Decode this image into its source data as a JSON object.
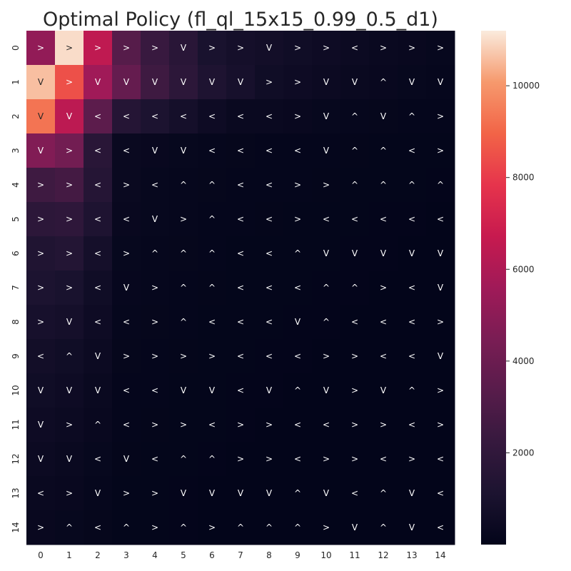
{
  "chart_data": {
    "type": "heatmap",
    "title": "Optimal Policy (fl_ql_15x15_0.99_0.5_d1)",
    "xlabel": "",
    "ylabel": "",
    "x_categories": [
      "0",
      "1",
      "2",
      "3",
      "4",
      "5",
      "6",
      "7",
      "8",
      "9",
      "10",
      "11",
      "12",
      "13",
      "14"
    ],
    "y_categories": [
      "0",
      "1",
      "2",
      "3",
      "4",
      "5",
      "6",
      "7",
      "8",
      "9",
      "10",
      "11",
      "12",
      "13",
      "14"
    ],
    "colorbar": {
      "vmin": 0,
      "vmax": 11200,
      "ticks": [
        2000,
        4000,
        6000,
        8000,
        10000
      ],
      "tick_labels": [
        "2000",
        "4000",
        "6000",
        "8000",
        "10000"
      ],
      "colormap": "rocket"
    },
    "annotations": [
      [
        ">",
        ">",
        ">",
        ">",
        ">",
        "V",
        ">",
        ">",
        "V",
        ">",
        ">",
        "<",
        ">",
        ">",
        ">"
      ],
      [
        "V",
        ">",
        "V",
        "V",
        "V",
        "V",
        "V",
        "V",
        ">",
        ">",
        "V",
        "V",
        "^",
        "V",
        "V"
      ],
      [
        "V",
        "V",
        "<",
        "<",
        "<",
        "<",
        "<",
        "<",
        "<",
        ">",
        "V",
        "^",
        "V",
        "^",
        ">"
      ],
      [
        "V",
        ">",
        "<",
        "<",
        "V",
        "V",
        "<",
        "<",
        "<",
        "<",
        "V",
        "^",
        "^",
        "<",
        ">"
      ],
      [
        ">",
        ">",
        "<",
        ">",
        "<",
        "^",
        "^",
        "<",
        "<",
        ">",
        ">",
        "^",
        "^",
        "^",
        "^"
      ],
      [
        ">",
        ">",
        "<",
        "<",
        "V",
        ">",
        "^",
        "<",
        "<",
        ">",
        "<",
        "<",
        "<",
        "<",
        "<"
      ],
      [
        ">",
        ">",
        "<",
        ">",
        "^",
        "^",
        "^",
        "<",
        "<",
        "^",
        "V",
        "V",
        "V",
        "V",
        "V"
      ],
      [
        ">",
        ">",
        "<",
        "V",
        ">",
        "^",
        "^",
        "<",
        "<",
        "<",
        "^",
        "^",
        ">",
        "<",
        "V"
      ],
      [
        ">",
        "V",
        "<",
        "<",
        ">",
        "^",
        "<",
        "<",
        "<",
        "V",
        "^",
        "<",
        "<",
        "<",
        ">"
      ],
      [
        "<",
        "^",
        "V",
        ">",
        ">",
        ">",
        ">",
        "<",
        "<",
        "<",
        ">",
        ">",
        "<",
        "<",
        "V"
      ],
      [
        "V",
        "V",
        "V",
        "<",
        "<",
        "V",
        "V",
        "<",
        "V",
        "^",
        "V",
        ">",
        "V",
        "^",
        ">"
      ],
      [
        "V",
        ">",
        "^",
        "<",
        ">",
        ">",
        "<",
        ">",
        ">",
        "<",
        "<",
        ">",
        ">",
        "<",
        ">"
      ],
      [
        "V",
        "V",
        "<",
        "V",
        "<",
        "^",
        "^",
        ">",
        ">",
        "<",
        ">",
        ">",
        "<",
        ">",
        "<"
      ],
      [
        "<",
        ">",
        "V",
        ">",
        ">",
        "V",
        "V",
        "V",
        "V",
        "^",
        "V",
        "<",
        "^",
        "V",
        "<"
      ],
      [
        ">",
        "^",
        "<",
        "^",
        ">",
        "^",
        ">",
        "^",
        "^",
        "^",
        ">",
        "V",
        "^",
        "V",
        "<"
      ]
    ],
    "values": [
      [
        5200,
        11000,
        6500,
        3300,
        2300,
        1700,
        1000,
        800,
        700,
        600,
        500,
        400,
        300,
        250,
        200
      ],
      [
        10600,
        8500,
        5600,
        3800,
        2500,
        1800,
        1200,
        900,
        600,
        500,
        400,
        300,
        250,
        200,
        150
      ],
      [
        9300,
        6400,
        3500,
        1500,
        1100,
        800,
        500,
        300,
        300,
        250,
        200,
        150,
        120,
        100,
        80
      ],
      [
        4700,
        4200,
        1700,
        300,
        250,
        200,
        150,
        120,
        100,
        100,
        80,
        70,
        60,
        50,
        40
      ],
      [
        2500,
        2700,
        1500,
        300,
        200,
        150,
        120,
        100,
        80,
        80,
        70,
        60,
        50,
        40,
        30
      ],
      [
        1800,
        1900,
        1200,
        250,
        200,
        150,
        100,
        80,
        70,
        60,
        50,
        40,
        30,
        30,
        20
      ],
      [
        1300,
        1400,
        800,
        200,
        150,
        120,
        80,
        60,
        50,
        50,
        40,
        30,
        30,
        20,
        20
      ],
      [
        1100,
        1000,
        600,
        180,
        150,
        100,
        70,
        50,
        40,
        40,
        30,
        30,
        20,
        20,
        20
      ],
      [
        900,
        800,
        500,
        150,
        120,
        80,
        60,
        50,
        40,
        30,
        30,
        20,
        20,
        20,
        10
      ],
      [
        700,
        600,
        400,
        120,
        100,
        70,
        50,
        40,
        30,
        30,
        20,
        20,
        20,
        10,
        10
      ],
      [
        600,
        500,
        300,
        100,
        80,
        60,
        40,
        30,
        30,
        20,
        20,
        20,
        10,
        10,
        10
      ],
      [
        500,
        400,
        250,
        80,
        70,
        50,
        40,
        30,
        20,
        20,
        20,
        10,
        10,
        10,
        10
      ],
      [
        400,
        300,
        200,
        70,
        60,
        40,
        30,
        20,
        20,
        20,
        10,
        10,
        10,
        10,
        10
      ],
      [
        300,
        250,
        150,
        60,
        50,
        30,
        20,
        20,
        20,
        10,
        10,
        10,
        10,
        10,
        10
      ],
      [
        250,
        200,
        120,
        50,
        40,
        30,
        20,
        20,
        10,
        10,
        10,
        10,
        10,
        10,
        10
      ]
    ]
  }
}
